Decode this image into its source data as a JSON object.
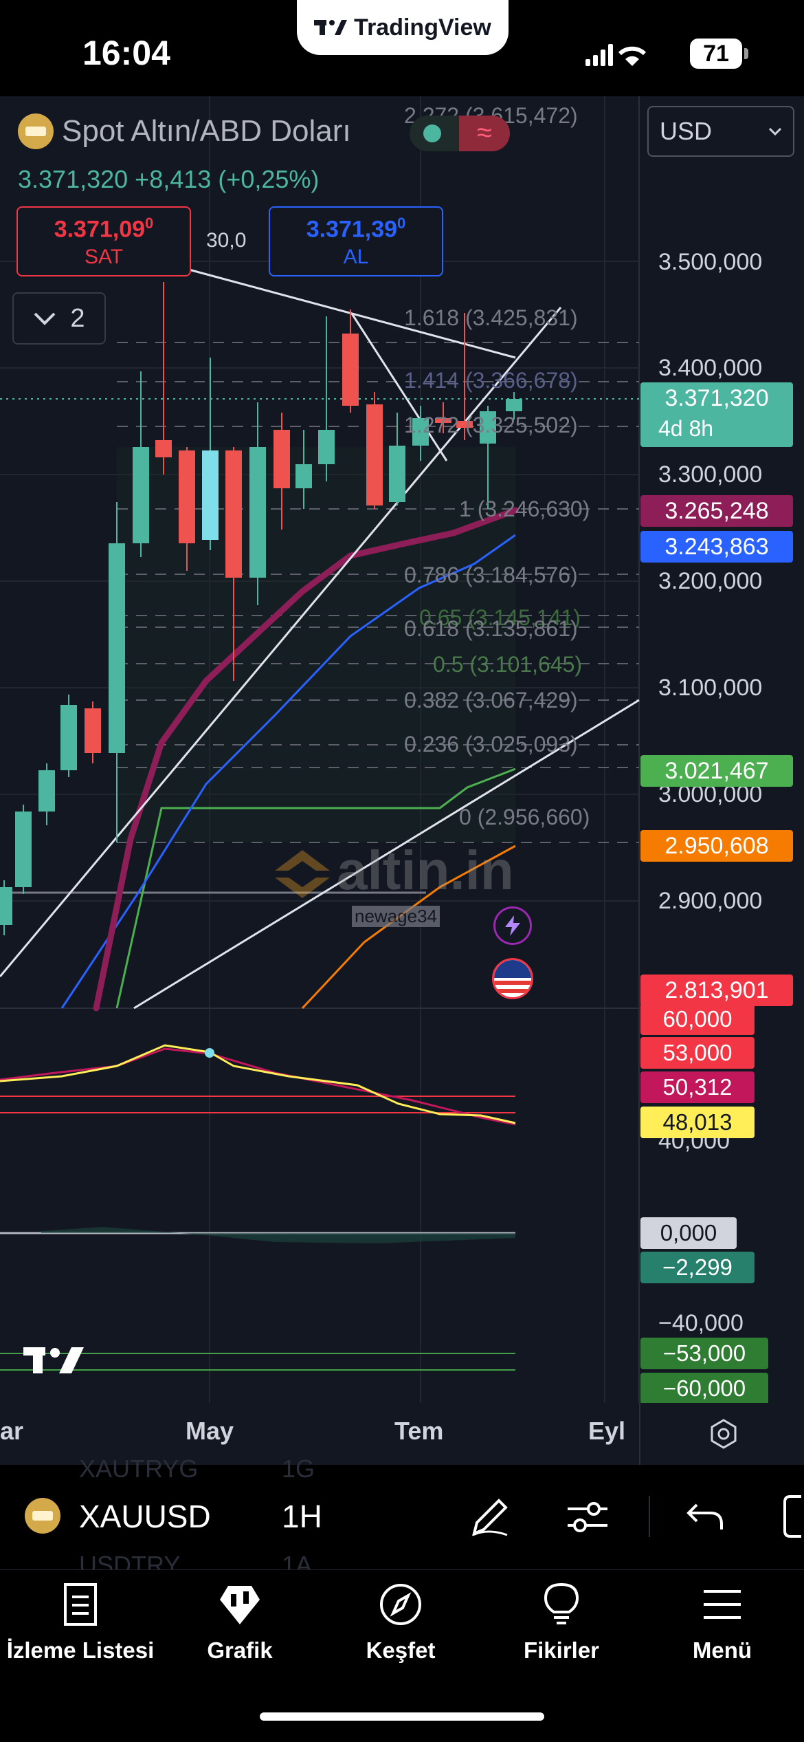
{
  "status_bar": {
    "time": "16:04",
    "battery": "71"
  },
  "app_badge": "TradingView",
  "chart": {
    "symbol_title": "Spot Altın/ABD Doları",
    "last_price": "3.371,320",
    "change": "+8,413",
    "change_pct": "(+0,25%)",
    "sell_price": "3.371,09",
    "sell_sup": "0",
    "sell_label": "SAT",
    "spread": "30,0",
    "buy_price": "3.371,39",
    "buy_sup": "0",
    "buy_label": "AL",
    "indicators_count": "2",
    "currency": "USD",
    "watermark": "altin.in",
    "watermark_user": "newage34",
    "price_axis": [
      "3.500,000",
      "3.400,000",
      "3.300,000",
      "3.200,000",
      "3.100,000",
      "3.000,000",
      "2.900,000"
    ],
    "price_tags": {
      "last": "3.371,320",
      "countdown": "4d 8h",
      "ma_slow": "3.265,248",
      "ma_fast": "3.243,863",
      "support": "3.021,467",
      "orange_line": "2.950,608",
      "lower_line": "2.813,901"
    },
    "fib_levels": [
      "2.272 (3.615,472)",
      "1.618 (3.425,831)",
      "1.414 (3.366,678)",
      "1.272 (3.325,502)",
      "1 (3.246,630)",
      "0.786 (3.184,576)",
      "0.65 (3.145,141)",
      "0.618 (3.135,861)",
      "0.5 (3.101,645)",
      "0.382 (3.067,429)",
      "0.236 (3.025,093)",
      "0 (2.956,660)"
    ],
    "rsi_tags": [
      "60,000",
      "53,000",
      "50,312",
      "48,013"
    ],
    "rsi_axis": "40,000",
    "osc_tags": [
      "0,000",
      "−2,299"
    ],
    "osc_axis": "−40,000",
    "osc_levels": [
      "−53,000",
      "−60,000"
    ],
    "time_axis": [
      "ar",
      "May",
      "Tem",
      "Eyl"
    ],
    "colors": {
      "up": "#4db6a0",
      "down": "#ef5350",
      "ma_slow": "#8e1e58",
      "ma_fast": "#2962ff",
      "support": "#4caf50",
      "orange": "#f57c00"
    }
  },
  "toolbar": {
    "symbol": "XAUUSD",
    "interval": "1H",
    "ghost_top": [
      "XAUTRYG",
      "1G"
    ],
    "ghost_bottom": [
      "USDTRY",
      "1A"
    ]
  },
  "tabs": [
    {
      "label": "İzleme Listesi",
      "icon": "watchlist-icon"
    },
    {
      "label": "Grafik",
      "icon": "chart-icon"
    },
    {
      "label": "Keşfet",
      "icon": "compass-icon"
    },
    {
      "label": "Fikirler",
      "icon": "lightbulb-icon"
    },
    {
      "label": "Menü",
      "icon": "menu-icon"
    }
  ]
}
